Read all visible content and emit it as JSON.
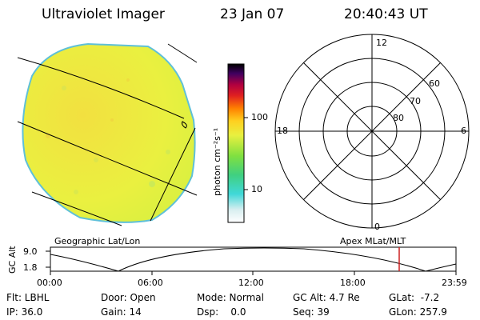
{
  "header": {
    "instrument": "Ultraviolet Imager",
    "date": "23 Jan 07",
    "time": "20:40:43 UT"
  },
  "colorbar": {
    "ticks": [
      "100",
      "10"
    ],
    "unit_label": "photon cm⁻²s⁻¹"
  },
  "polar_plot": {
    "clock_labels": [
      "12",
      "18",
      "6",
      "0"
    ],
    "lat_labels": [
      "60",
      "70",
      "80"
    ]
  },
  "orbit_strip": {
    "left_label": "Geographic Lat/Lon",
    "right_label": "Apex MLat/MLT",
    "axis_title": "GC Alt",
    "y_ticks": [
      "9.0",
      "1.8"
    ],
    "x_ticks": [
      "00:00",
      "06:00",
      "12:00",
      "18:00",
      "23:59"
    ]
  },
  "status": {
    "col1": [
      "Flt: LBHL",
      "IP: 36.0"
    ],
    "col2": [
      "Door: Open",
      "Gain: 14"
    ],
    "col3": [
      "Mode: Normal",
      "Dsp:    0.0"
    ],
    "col4": [
      "GC Alt: 4.7 Re",
      "Seq: 39"
    ],
    "col5": [
      "GLat:  -7.2",
      "GLon: 257.9"
    ]
  },
  "colors": {
    "disk_fill": "#e8f040",
    "disk_edge": "#5fc0d8",
    "current_marker": "#cc2020"
  }
}
